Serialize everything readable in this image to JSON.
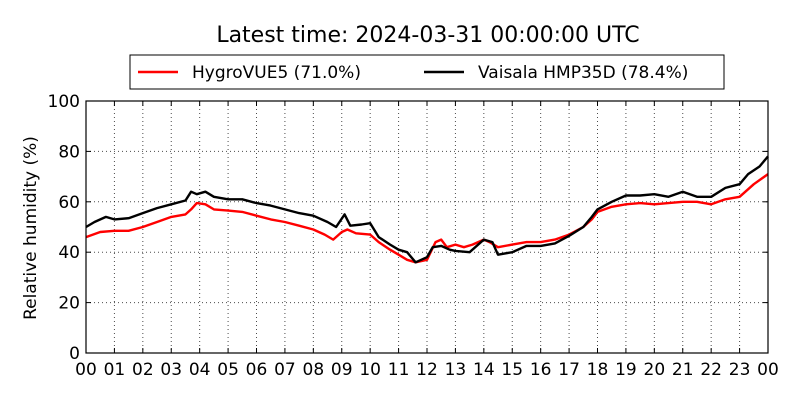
{
  "chart_data": {
    "type": "line",
    "title": "Latest time: 2024-03-31 00:00:00 UTC",
    "xlabel": "",
    "ylabel": "Relative humidity (%)",
    "xlim": [
      0,
      24
    ],
    "ylim": [
      0,
      100
    ],
    "x_ticks": [
      "00",
      "01",
      "02",
      "03",
      "04",
      "05",
      "06",
      "07",
      "08",
      "09",
      "10",
      "11",
      "12",
      "13",
      "14",
      "15",
      "16",
      "17",
      "18",
      "19",
      "20",
      "21",
      "22",
      "23",
      "00"
    ],
    "y_ticks": [
      0,
      20,
      40,
      60,
      80,
      100
    ],
    "grid": true,
    "legend_position": "top",
    "series": [
      {
        "name": "HygroVUE5 (71.0%)",
        "color": "#ff0000",
        "points": [
          [
            0,
            46
          ],
          [
            0.5,
            48
          ],
          [
            1,
            48.5
          ],
          [
            1.5,
            48.5
          ],
          [
            2,
            50
          ],
          [
            2.5,
            52
          ],
          [
            3,
            54
          ],
          [
            3.5,
            55
          ],
          [
            3.7,
            57
          ],
          [
            3.9,
            59.5
          ],
          [
            4.2,
            59
          ],
          [
            4.5,
            57
          ],
          [
            5,
            56.5
          ],
          [
            5.5,
            56
          ],
          [
            6,
            54.5
          ],
          [
            6.5,
            53
          ],
          [
            7,
            52
          ],
          [
            7.5,
            50.5
          ],
          [
            8,
            49
          ],
          [
            8.4,
            47
          ],
          [
            8.7,
            45
          ],
          [
            9,
            48
          ],
          [
            9.2,
            49
          ],
          [
            9.5,
            47.5
          ],
          [
            10,
            47
          ],
          [
            10.3,
            44
          ],
          [
            10.7,
            41
          ],
          [
            11,
            39
          ],
          [
            11.3,
            37
          ],
          [
            11.6,
            36
          ],
          [
            12,
            37
          ],
          [
            12.3,
            44
          ],
          [
            12.5,
            45
          ],
          [
            12.7,
            42
          ],
          [
            13,
            43
          ],
          [
            13.3,
            42
          ],
          [
            13.6,
            43
          ],
          [
            14,
            45
          ],
          [
            14.2,
            44
          ],
          [
            14.5,
            42
          ],
          [
            15,
            43
          ],
          [
            15.5,
            44
          ],
          [
            16,
            44
          ],
          [
            16.5,
            45
          ],
          [
            17,
            47
          ],
          [
            17.5,
            50
          ],
          [
            17.8,
            53
          ],
          [
            18,
            56
          ],
          [
            18.5,
            58
          ],
          [
            19,
            59
          ],
          [
            19.5,
            59.5
          ],
          [
            20,
            59
          ],
          [
            20.5,
            59.5
          ],
          [
            21,
            60
          ],
          [
            21.5,
            60
          ],
          [
            22,
            59
          ],
          [
            22.5,
            61
          ],
          [
            23,
            62
          ],
          [
            23.5,
            67
          ],
          [
            24,
            71
          ]
        ]
      },
      {
        "name": "Vaisala HMP35D (78.4%)",
        "color": "#000000",
        "points": [
          [
            0,
            50
          ],
          [
            0.3,
            52
          ],
          [
            0.7,
            54
          ],
          [
            1,
            53
          ],
          [
            1.5,
            53.5
          ],
          [
            2,
            55.5
          ],
          [
            2.5,
            57.5
          ],
          [
            3,
            59
          ],
          [
            3.5,
            60.5
          ],
          [
            3.7,
            64
          ],
          [
            3.9,
            63
          ],
          [
            4.2,
            64
          ],
          [
            4.5,
            62
          ],
          [
            5,
            61
          ],
          [
            5.5,
            61
          ],
          [
            6,
            59.5
          ],
          [
            6.5,
            58.5
          ],
          [
            7,
            57
          ],
          [
            7.5,
            55.5
          ],
          [
            8,
            54.5
          ],
          [
            8.5,
            52
          ],
          [
            8.8,
            50
          ],
          [
            9.1,
            55
          ],
          [
            9.3,
            50.5
          ],
          [
            9.7,
            51
          ],
          [
            10,
            51.5
          ],
          [
            10.3,
            46
          ],
          [
            10.7,
            43
          ],
          [
            11,
            41
          ],
          [
            11.3,
            40
          ],
          [
            11.6,
            36
          ],
          [
            12,
            38
          ],
          [
            12.2,
            42
          ],
          [
            12.5,
            42.5
          ],
          [
            12.8,
            41
          ],
          [
            13,
            40.5
          ],
          [
            13.5,
            40
          ],
          [
            14,
            45
          ],
          [
            14.3,
            44
          ],
          [
            14.5,
            39
          ],
          [
            15,
            40
          ],
          [
            15.5,
            42.5
          ],
          [
            16,
            42.5
          ],
          [
            16.5,
            43.5
          ],
          [
            17,
            46.5
          ],
          [
            17.5,
            50
          ],
          [
            17.8,
            54
          ],
          [
            18,
            57
          ],
          [
            18.5,
            60
          ],
          [
            19,
            62.5
          ],
          [
            19.5,
            62.5
          ],
          [
            20,
            63
          ],
          [
            20.5,
            62
          ],
          [
            21,
            64
          ],
          [
            21.5,
            62
          ],
          [
            22,
            62
          ],
          [
            22.5,
            65.5
          ],
          [
            23,
            67
          ],
          [
            23.3,
            71
          ],
          [
            23.7,
            74
          ],
          [
            24,
            78
          ]
        ]
      }
    ]
  }
}
